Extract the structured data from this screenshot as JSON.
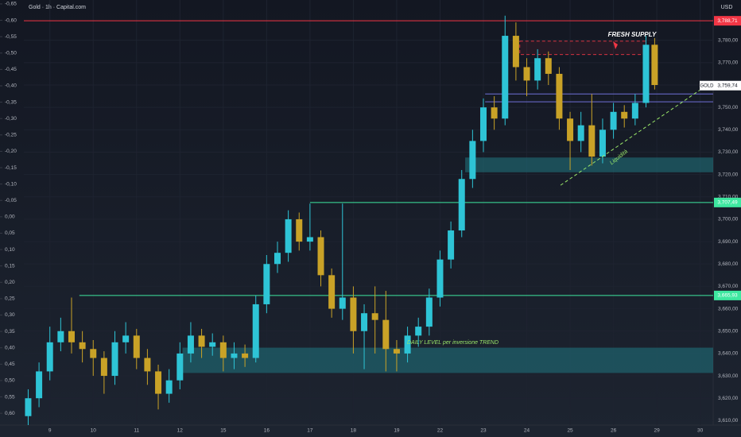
{
  "chart_data": {
    "type": "candlestick",
    "title": "Gold · 1h · Capital.com",
    "currency": "USD",
    "grid": true,
    "up_color": "#2ec4d6",
    "down_color": "#c9a227",
    "xlim": [
      -0.6,
      15.3
    ],
    "xticks": [
      {
        "value": 0,
        "label": "9"
      },
      {
        "value": 1,
        "label": "10"
      },
      {
        "value": 2,
        "label": "11"
      },
      {
        "value": 3,
        "label": "12"
      },
      {
        "value": 4,
        "label": "15"
      },
      {
        "value": 5,
        "label": "16"
      },
      {
        "value": 6,
        "label": "17"
      },
      {
        "value": 7,
        "label": "18"
      },
      {
        "value": 8,
        "label": "19"
      },
      {
        "value": 9,
        "label": "22"
      },
      {
        "value": 10,
        "label": "23"
      },
      {
        "value": 11,
        "label": "24"
      },
      {
        "value": 12,
        "label": "25"
      },
      {
        "value": 13,
        "label": "26"
      },
      {
        "value": 14,
        "label": "29"
      },
      {
        "value": 15,
        "label": "30"
      }
    ],
    "ylim": [
      3608,
      3798
    ],
    "yticks": [
      {
        "value": 3610,
        "label": "3,610,00"
      },
      {
        "value": 3620,
        "label": "3,620,00"
      },
      {
        "value": 3630,
        "label": "3,630,00"
      },
      {
        "value": 3640,
        "label": "3,640,00"
      },
      {
        "value": 3650,
        "label": "3,650,00"
      },
      {
        "value": 3660,
        "label": "3,660,00"
      },
      {
        "value": 3670,
        "label": "3,670,00"
      },
      {
        "value": 3680,
        "label": "3,680,00"
      },
      {
        "value": 3690,
        "label": "3,690,00"
      },
      {
        "value": 3700,
        "label": "3,700,00"
      },
      {
        "value": 3710,
        "label": "3,710,00"
      },
      {
        "value": 3720,
        "label": "3,720,00"
      },
      {
        "value": 3730,
        "label": "3,730,00"
      },
      {
        "value": 3740,
        "label": "3,740,00"
      },
      {
        "value": 3750,
        "label": "3,750,00"
      },
      {
        "value": 3760,
        "label": "3,760,00"
      },
      {
        "value": 3770,
        "label": "3,770,00"
      },
      {
        "value": 3780,
        "label": "3,780,00"
      }
    ],
    "y2lim": [
      0.636,
      -0.662
    ],
    "y2ticks": [
      {
        "value": -0.65,
        "label": "-0,65"
      },
      {
        "value": -0.6,
        "label": "-0,60"
      },
      {
        "value": -0.55,
        "label": "-0,55"
      },
      {
        "value": -0.5,
        "label": "-0,50"
      },
      {
        "value": -0.45,
        "label": "-0,45"
      },
      {
        "value": -0.4,
        "label": "-0,40"
      },
      {
        "value": -0.35,
        "label": "-0,35"
      },
      {
        "value": -0.3,
        "label": "-0,30"
      },
      {
        "value": -0.25,
        "label": "-0,25"
      },
      {
        "value": -0.2,
        "label": "-0,20"
      },
      {
        "value": -0.15,
        "label": "-0,15"
      },
      {
        "value": -0.1,
        "label": "-0,10"
      },
      {
        "value": -0.05,
        "label": "-0,05"
      },
      {
        "value": 0,
        "label": "0,00"
      },
      {
        "value": 0.05,
        "label": "0,05"
      },
      {
        "value": 0.1,
        "label": "0,10"
      },
      {
        "value": 0.15,
        "label": "0,15"
      },
      {
        "value": 0.2,
        "label": "0,20"
      },
      {
        "value": 0.25,
        "label": "0,25"
      },
      {
        "value": 0.3,
        "label": "0,30"
      },
      {
        "value": 0.35,
        "label": "0,35"
      },
      {
        "value": 0.4,
        "label": "0,40"
      },
      {
        "value": 0.45,
        "label": "0,45"
      },
      {
        "value": 0.5,
        "label": "0,50"
      },
      {
        "value": 0.55,
        "label": "0,55"
      },
      {
        "value": 0.6,
        "label": "0,60"
      }
    ],
    "x": [
      -0.5,
      -0.25,
      0,
      0.25,
      0.5,
      0.75,
      1,
      1.25,
      1.5,
      1.75,
      2,
      2.25,
      2.5,
      2.75,
      3,
      3.25,
      3.5,
      3.75,
      4,
      4.25,
      4.5,
      4.75,
      5,
      5.25,
      5.5,
      5.75,
      6,
      6.25,
      6.5,
      6.75,
      7,
      7.25,
      7.5,
      7.75,
      8,
      8.25,
      8.5,
      8.75,
      9,
      9.25,
      9.5,
      9.75,
      10,
      10.25,
      10.5,
      10.75,
      11,
      11.25,
      11.5,
      11.75,
      12,
      12.25,
      12.5,
      12.75,
      13,
      13.25,
      13.5,
      13.75,
      13.95
    ],
    "open": [
      3612,
      3620,
      3632,
      3645,
      3650,
      3645,
      3642,
      3638,
      3630,
      3645,
      3648,
      3638,
      3632,
      3622,
      3628,
      3640,
      3648,
      3643,
      3645,
      3638,
      3640,
      3638,
      3662,
      3680,
      3685,
      3700,
      3690,
      3692,
      3675,
      3660,
      3665,
      3650,
      3658,
      3655,
      3642,
      3640,
      3648,
      3652,
      3665,
      3682,
      3695,
      3718,
      3735,
      3750,
      3745,
      3782,
      3768,
      3762,
      3772,
      3765,
      3745,
      3735,
      3742,
      3728,
      3740,
      3748,
      3745,
      3752,
      3778
    ],
    "high": [
      3624,
      3636,
      3652,
      3656,
      3665,
      3650,
      3646,
      3641,
      3650,
      3654,
      3651,
      3642,
      3635,
      3633,
      3645,
      3654,
      3651,
      3649,
      3648,
      3645,
      3644,
      3666,
      3684,
      3690,
      3704,
      3703,
      3707,
      3695,
      3678,
      3707,
      3670,
      3662,
      3670,
      3668,
      3646,
      3652,
      3656,
      3669,
      3686,
      3699,
      3722,
      3740,
      3754,
      3755,
      3791,
      3788,
      3772,
      3776,
      3775,
      3768,
      3748,
      3748,
      3756,
      3745,
      3752,
      3751,
      3756,
      3782,
      3781
    ],
    "low": [
      3608,
      3616,
      3628,
      3641,
      3640,
      3636,
      3630,
      3622,
      3626,
      3640,
      3633,
      3626,
      3615,
      3618,
      3624,
      3636,
      3638,
      3639,
      3632,
      3633,
      3634,
      3636,
      3658,
      3676,
      3681,
      3686,
      3686,
      3670,
      3656,
      3655,
      3640,
      3633,
      3640,
      3632,
      3632,
      3636,
      3643,
      3648,
      3661,
      3678,
      3692,
      3714,
      3730,
      3740,
      3742,
      3762,
      3755,
      3758,
      3760,
      3740,
      3722,
      3730,
      3724,
      3725,
      3736,
      3741,
      3742,
      3750,
      3758
    ],
    "close": [
      3620,
      3632,
      3645,
      3650,
      3645,
      3642,
      3638,
      3630,
      3645,
      3648,
      3638,
      3632,
      3622,
      3628,
      3640,
      3648,
      3643,
      3645,
      3638,
      3640,
      3638,
      3662,
      3680,
      3685,
      3700,
      3690,
      3692,
      3675,
      3660,
      3665,
      3650,
      3658,
      3655,
      3642,
      3640,
      3648,
      3652,
      3665,
      3682,
      3695,
      3718,
      3735,
      3750,
      3745,
      3782,
      3768,
      3762,
      3772,
      3765,
      3745,
      3735,
      3742,
      3728,
      3740,
      3748,
      3745,
      3752,
      3778,
      3760
    ],
    "price_tags": [
      {
        "value": 3788.71,
        "label": "3,788,71",
        "color": "#f23645"
      },
      {
        "value": 3759.74,
        "label": "3,759,74",
        "color": "#ffffff",
        "name": "GOLD"
      },
      {
        "value": 3707.49,
        "label": "3,707,49",
        "color": "#3ee8a0"
      },
      {
        "value": 3665.93,
        "label": "3,665,93",
        "color": "#3ee8a0"
      }
    ],
    "levels": [
      {
        "tag": 0,
        "x_start": -0.6,
        "color": "#f23645"
      },
      {
        "tag": 2,
        "x_start": 6.0,
        "color": "#3ee8a0"
      },
      {
        "tag": 3,
        "x_start": 0.68,
        "color": "#3ee8a0"
      }
    ],
    "zones": [
      {
        "low": 3631.3,
        "high": 3642.6,
        "x_start": 3.06,
        "color": "#1f6f7a"
      },
      {
        "low": 3721,
        "high": 3727.6,
        "x_start": 9.58,
        "color": "#1f6f7a"
      },
      {
        "low": 3773.6,
        "high": 3779.6,
        "x_start": 10.84,
        "x_end": 13.75,
        "color": "#f23645"
      }
    ],
    "band_lines": [
      3752.5,
      3756
    ],
    "band_x_start": 10.04,
    "trendline": {
      "x": [
        11.78,
        14.99
      ],
      "y": [
        3715.2,
        3757.7
      ],
      "color": "#9be86a"
    },
    "annotations": [
      "FRESH SUPPLY",
      "DAILY LEVEL per inversione TREND",
      "Liquidità"
    ]
  }
}
